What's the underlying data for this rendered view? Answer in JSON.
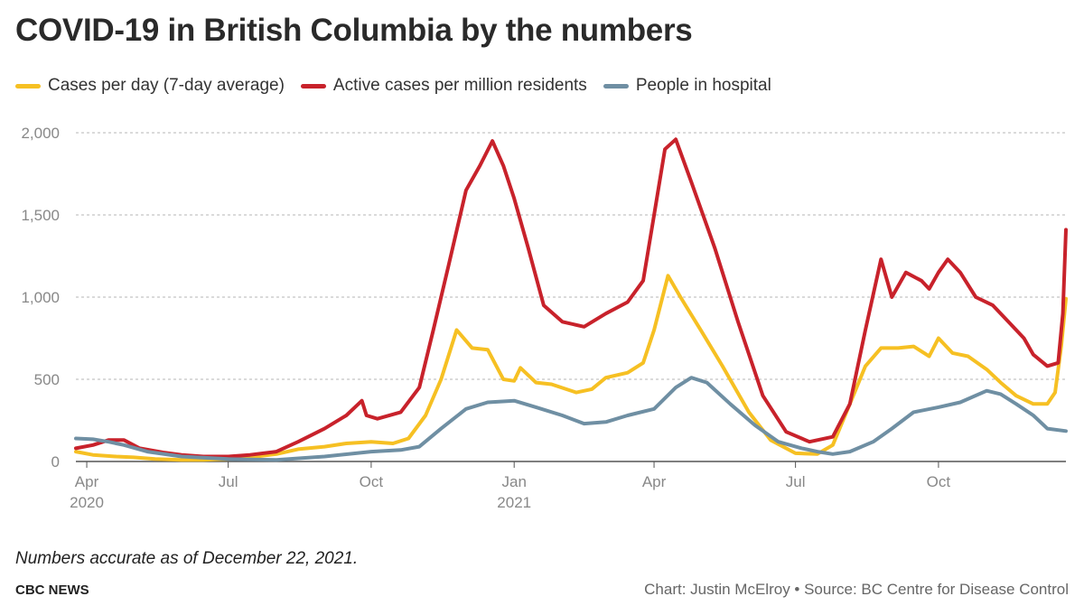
{
  "title": "COVID-19 in British Columbia by the numbers",
  "note": "Numbers accurate as of December 22, 2021.",
  "brand": "CBC NEWS",
  "credit": "Chart: Justin McElroy • Source: BC Centre for Disease Control",
  "chart_data": {
    "type": "line",
    "xlim": [
      "2020-03-25",
      "2021-12-22"
    ],
    "ylim": [
      0,
      2000
    ],
    "grid": true,
    "legend_position": "top-left",
    "x_ticks": [
      {
        "date": "2020-04-01",
        "label": "Apr",
        "sublabel": "2020"
      },
      {
        "date": "2020-07-01",
        "label": "Jul",
        "sublabel": ""
      },
      {
        "date": "2020-10-01",
        "label": "Oct",
        "sublabel": ""
      },
      {
        "date": "2021-01-01",
        "label": "Jan",
        "sublabel": "2021"
      },
      {
        "date": "2021-04-01",
        "label": "Apr",
        "sublabel": ""
      },
      {
        "date": "2021-07-01",
        "label": "Jul",
        "sublabel": ""
      },
      {
        "date": "2021-10-01",
        "label": "Oct",
        "sublabel": ""
      }
    ],
    "y_ticks": [
      {
        "value": 0,
        "label": "0"
      },
      {
        "value": 500,
        "label": "500"
      },
      {
        "value": 1000,
        "label": "1,000"
      },
      {
        "value": 1500,
        "label": "1,500"
      },
      {
        "value": 2000,
        "label": "2,000"
      }
    ],
    "series": [
      {
        "name": "Cases per day (7-day average)",
        "color": "#f6c023",
        "points": [
          [
            "2020-03-25",
            60
          ],
          [
            "2020-04-05",
            40
          ],
          [
            "2020-04-20",
            30
          ],
          [
            "2020-05-01",
            25
          ],
          [
            "2020-05-15",
            15
          ],
          [
            "2020-06-01",
            10
          ],
          [
            "2020-06-15",
            10
          ],
          [
            "2020-07-01",
            15
          ],
          [
            "2020-07-15",
            25
          ],
          [
            "2020-08-01",
            45
          ],
          [
            "2020-08-15",
            75
          ],
          [
            "2020-09-01",
            90
          ],
          [
            "2020-09-15",
            110
          ],
          [
            "2020-10-01",
            120
          ],
          [
            "2020-10-15",
            110
          ],
          [
            "2020-10-25",
            140
          ],
          [
            "2020-11-05",
            280
          ],
          [
            "2020-11-15",
            500
          ],
          [
            "2020-11-25",
            800
          ],
          [
            "2020-12-05",
            690
          ],
          [
            "2020-12-15",
            680
          ],
          [
            "2020-12-25",
            500
          ],
          [
            "2021-01-01",
            490
          ],
          [
            "2021-01-05",
            570
          ],
          [
            "2021-01-15",
            480
          ],
          [
            "2021-01-25",
            470
          ],
          [
            "2021-02-10",
            420
          ],
          [
            "2021-02-20",
            440
          ],
          [
            "2021-03-01",
            510
          ],
          [
            "2021-03-15",
            540
          ],
          [
            "2021-03-25",
            600
          ],
          [
            "2021-04-01",
            800
          ],
          [
            "2021-04-10",
            1130
          ],
          [
            "2021-04-18",
            1000
          ],
          [
            "2021-05-01",
            800
          ],
          [
            "2021-05-15",
            580
          ],
          [
            "2021-06-01",
            300
          ],
          [
            "2021-06-15",
            130
          ],
          [
            "2021-07-01",
            50
          ],
          [
            "2021-07-15",
            45
          ],
          [
            "2021-07-25",
            100
          ],
          [
            "2021-08-05",
            350
          ],
          [
            "2021-08-15",
            580
          ],
          [
            "2021-08-25",
            690
          ],
          [
            "2021-09-05",
            690
          ],
          [
            "2021-09-15",
            700
          ],
          [
            "2021-09-25",
            640
          ],
          [
            "2021-10-01",
            750
          ],
          [
            "2021-10-10",
            660
          ],
          [
            "2021-10-20",
            640
          ],
          [
            "2021-11-01",
            560
          ],
          [
            "2021-11-10",
            480
          ],
          [
            "2021-11-20",
            400
          ],
          [
            "2021-12-01",
            350
          ],
          [
            "2021-12-10",
            350
          ],
          [
            "2021-12-15",
            420
          ],
          [
            "2021-12-19",
            700
          ],
          [
            "2021-12-22",
            990
          ]
        ]
      },
      {
        "name": "Active cases per million residents",
        "color": "#c8222b",
        "points": [
          [
            "2020-03-25",
            80
          ],
          [
            "2020-04-05",
            100
          ],
          [
            "2020-04-15",
            130
          ],
          [
            "2020-04-25",
            130
          ],
          [
            "2020-05-05",
            80
          ],
          [
            "2020-05-20",
            55
          ],
          [
            "2020-06-01",
            40
          ],
          [
            "2020-06-15",
            30
          ],
          [
            "2020-07-01",
            30
          ],
          [
            "2020-07-15",
            40
          ],
          [
            "2020-08-01",
            60
          ],
          [
            "2020-08-15",
            120
          ],
          [
            "2020-09-01",
            200
          ],
          [
            "2020-09-15",
            280
          ],
          [
            "2020-09-25",
            370
          ],
          [
            "2020-09-28",
            280
          ],
          [
            "2020-10-05",
            260
          ],
          [
            "2020-10-20",
            300
          ],
          [
            "2020-11-01",
            450
          ],
          [
            "2020-11-10",
            800
          ],
          [
            "2020-11-20",
            1200
          ],
          [
            "2020-12-01",
            1650
          ],
          [
            "2020-12-10",
            1800
          ],
          [
            "2020-12-18",
            1950
          ],
          [
            "2020-12-25",
            1800
          ],
          [
            "2021-01-01",
            1600
          ],
          [
            "2021-01-10",
            1300
          ],
          [
            "2021-01-20",
            950
          ],
          [
            "2021-02-01",
            850
          ],
          [
            "2021-02-15",
            820
          ],
          [
            "2021-03-01",
            900
          ],
          [
            "2021-03-15",
            970
          ],
          [
            "2021-03-25",
            1100
          ],
          [
            "2021-04-01",
            1500
          ],
          [
            "2021-04-08",
            1900
          ],
          [
            "2021-04-15",
            1960
          ],
          [
            "2021-04-25",
            1700
          ],
          [
            "2021-05-10",
            1300
          ],
          [
            "2021-05-25",
            850
          ],
          [
            "2021-06-10",
            400
          ],
          [
            "2021-06-25",
            180
          ],
          [
            "2021-07-10",
            120
          ],
          [
            "2021-07-25",
            150
          ],
          [
            "2021-08-05",
            350
          ],
          [
            "2021-08-15",
            800
          ],
          [
            "2021-08-25",
            1230
          ],
          [
            "2021-09-01",
            1000
          ],
          [
            "2021-09-10",
            1150
          ],
          [
            "2021-09-20",
            1100
          ],
          [
            "2021-09-25",
            1050
          ],
          [
            "2021-10-01",
            1150
          ],
          [
            "2021-10-07",
            1230
          ],
          [
            "2021-10-15",
            1150
          ],
          [
            "2021-10-25",
            1000
          ],
          [
            "2021-11-05",
            950
          ],
          [
            "2021-11-15",
            850
          ],
          [
            "2021-11-25",
            750
          ],
          [
            "2021-12-01",
            650
          ],
          [
            "2021-12-10",
            580
          ],
          [
            "2021-12-17",
            600
          ],
          [
            "2021-12-20",
            900
          ],
          [
            "2021-12-22",
            1410
          ]
        ]
      },
      {
        "name": "People in hospital",
        "color": "#6f8fa3",
        "points": [
          [
            "2020-03-25",
            140
          ],
          [
            "2020-04-05",
            135
          ],
          [
            "2020-04-15",
            120
          ],
          [
            "2020-04-25",
            100
          ],
          [
            "2020-05-10",
            60
          ],
          [
            "2020-06-01",
            30
          ],
          [
            "2020-07-01",
            15
          ],
          [
            "2020-08-01",
            10
          ],
          [
            "2020-09-01",
            30
          ],
          [
            "2020-10-01",
            60
          ],
          [
            "2020-10-20",
            70
          ],
          [
            "2020-11-01",
            90
          ],
          [
            "2020-11-15",
            200
          ],
          [
            "2020-12-01",
            320
          ],
          [
            "2020-12-15",
            360
          ],
          [
            "2021-01-01",
            370
          ],
          [
            "2021-01-15",
            330
          ],
          [
            "2021-02-01",
            280
          ],
          [
            "2021-02-15",
            230
          ],
          [
            "2021-03-01",
            240
          ],
          [
            "2021-03-15",
            280
          ],
          [
            "2021-04-01",
            320
          ],
          [
            "2021-04-15",
            450
          ],
          [
            "2021-04-25",
            510
          ],
          [
            "2021-05-05",
            480
          ],
          [
            "2021-05-20",
            350
          ],
          [
            "2021-06-05",
            220
          ],
          [
            "2021-06-20",
            120
          ],
          [
            "2021-07-05",
            80
          ],
          [
            "2021-07-15",
            60
          ],
          [
            "2021-07-25",
            45
          ],
          [
            "2021-08-05",
            60
          ],
          [
            "2021-08-20",
            120
          ],
          [
            "2021-09-01",
            200
          ],
          [
            "2021-09-15",
            300
          ],
          [
            "2021-10-01",
            330
          ],
          [
            "2021-10-15",
            360
          ],
          [
            "2021-11-01",
            430
          ],
          [
            "2021-11-10",
            410
          ],
          [
            "2021-11-20",
            350
          ],
          [
            "2021-12-01",
            280
          ],
          [
            "2021-12-10",
            200
          ],
          [
            "2021-12-22",
            185
          ]
        ]
      }
    ]
  }
}
